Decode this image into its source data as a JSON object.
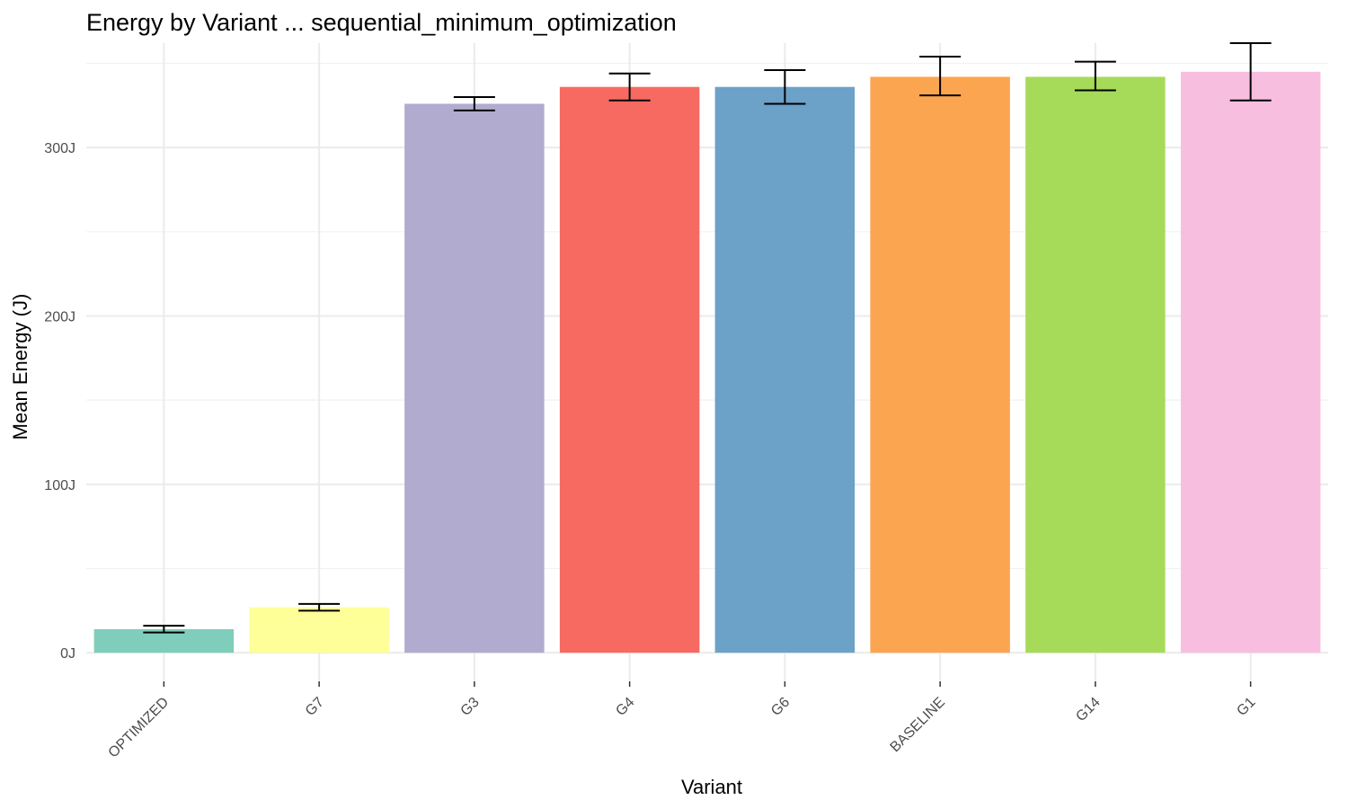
{
  "chart_data": {
    "type": "bar",
    "title": "Energy by Variant ... sequential_minimum_optimization",
    "xlabel": "Variant",
    "ylabel": "Mean Energy (J)",
    "ylim": [
      -17,
      362
    ],
    "yticks": [
      0,
      100,
      200,
      300
    ],
    "ytick_labels": [
      "0J",
      "100J",
      "200J",
      "300J"
    ],
    "grid": true,
    "legend": "none",
    "categories": [
      "OPTIMIZED",
      "G7",
      "G3",
      "G4",
      "G6",
      "BASELINE",
      "G14",
      "G1"
    ],
    "values": [
      14,
      27,
      326,
      336,
      336,
      342,
      342,
      345
    ],
    "error_low": [
      12,
      25,
      322,
      328,
      326,
      331,
      334,
      328
    ],
    "error_high": [
      16,
      29,
      330,
      344,
      346,
      354,
      351,
      362
    ],
    "colors": [
      "#7fcdbb",
      "#ffff99",
      "#b1abcf",
      "#f76a62",
      "#6ca1c8",
      "#fca551",
      "#a5db58",
      "#f8bedf"
    ]
  }
}
